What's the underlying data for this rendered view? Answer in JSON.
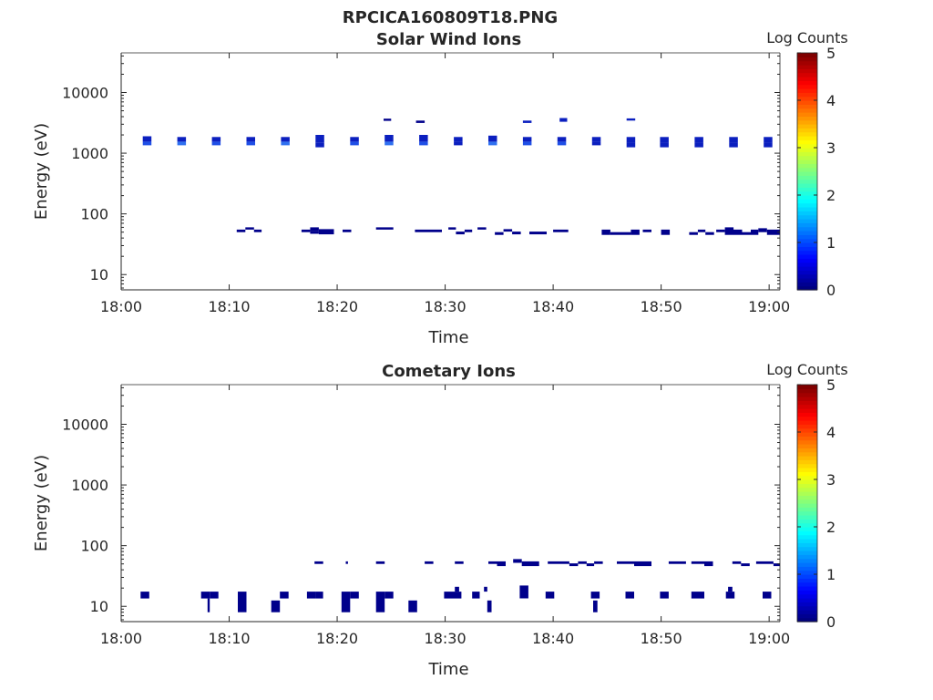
{
  "figure_title": "RPCICA160809T18.PNG",
  "colors": {
    "c0": "#00008b",
    "c1": "#0b1fbf",
    "c2": "#1f4fe6",
    "c3": "#2f70f0"
  },
  "chart_data": [
    {
      "type": "heatmap",
      "title": "Solar Wind Ions",
      "xlabel": "Time",
      "ylabel": "Energy (eV)",
      "x_ticks": [
        "18:00",
        "18:10",
        "18:20",
        "18:30",
        "18:40",
        "18:50",
        "19:00"
      ],
      "y_ticks": [
        "10",
        "100",
        "1000",
        "10000"
      ],
      "xlim_minutes": [
        0,
        61
      ],
      "y_scale": "log",
      "ylim": [
        5.6,
        45000
      ],
      "grid": false,
      "colorbar": {
        "label": "Log Counts",
        "ticks": [
          "0",
          "1",
          "2",
          "3",
          "4",
          "5"
        ],
        "range": [
          0,
          5
        ],
        "colormap": "jet"
      },
      "cells": [
        [
          2.0,
          2.8,
          1350,
          1550,
          2
        ],
        [
          2.0,
          2.8,
          1550,
          1900,
          1
        ],
        [
          5.2,
          6.0,
          1350,
          1550,
          3
        ],
        [
          5.2,
          6.0,
          1550,
          1850,
          1
        ],
        [
          8.4,
          9.2,
          1350,
          1550,
          2
        ],
        [
          8.4,
          9.2,
          1550,
          1850,
          1
        ],
        [
          11.6,
          12.4,
          1350,
          1550,
          2
        ],
        [
          11.6,
          12.4,
          1550,
          1850,
          1
        ],
        [
          14.8,
          15.6,
          1350,
          1550,
          3
        ],
        [
          14.8,
          15.6,
          1550,
          1850,
          1
        ],
        [
          18.0,
          18.8,
          1250,
          1500,
          1
        ],
        [
          18.0,
          18.8,
          1500,
          2000,
          1
        ],
        [
          21.2,
          22.0,
          1350,
          1550,
          2
        ],
        [
          21.2,
          22.0,
          1550,
          1850,
          1
        ],
        [
          24.4,
          25.2,
          1350,
          1550,
          3
        ],
        [
          24.4,
          25.2,
          1550,
          2000,
          1
        ],
        [
          27.6,
          28.4,
          1350,
          1550,
          2
        ],
        [
          27.6,
          28.4,
          1550,
          2000,
          1
        ],
        [
          30.8,
          31.6,
          1350,
          1550,
          1
        ],
        [
          30.8,
          31.6,
          1550,
          1850,
          1
        ],
        [
          34.0,
          34.8,
          1350,
          1550,
          3
        ],
        [
          34.0,
          34.8,
          1550,
          1950,
          1
        ],
        [
          37.2,
          38.0,
          1350,
          1550,
          2
        ],
        [
          37.2,
          38.0,
          1550,
          1850,
          1
        ],
        [
          40.4,
          41.2,
          1350,
          1550,
          2
        ],
        [
          40.4,
          41.2,
          1550,
          1850,
          1
        ],
        [
          43.6,
          44.4,
          1350,
          1550,
          1
        ],
        [
          43.6,
          44.4,
          1550,
          1850,
          1
        ],
        [
          46.8,
          47.6,
          1250,
          1500,
          1
        ],
        [
          46.8,
          47.6,
          1500,
          1850,
          1
        ],
        [
          49.9,
          50.7,
          1250,
          1500,
          1
        ],
        [
          49.9,
          50.7,
          1500,
          1850,
          1
        ],
        [
          53.1,
          53.9,
          1250,
          1500,
          1
        ],
        [
          53.1,
          53.9,
          1500,
          1850,
          1
        ],
        [
          56.3,
          57.1,
          1250,
          1500,
          1
        ],
        [
          56.3,
          57.1,
          1500,
          1850,
          1
        ],
        [
          59.5,
          60.3,
          1250,
          1500,
          1
        ],
        [
          59.5,
          60.3,
          1500,
          1850,
          1
        ],
        [
          24.3,
          25.0,
          3400,
          3700,
          0
        ],
        [
          27.3,
          28.1,
          3150,
          3450,
          0
        ],
        [
          37.2,
          38.0,
          3150,
          3450,
          1
        ],
        [
          40.6,
          41.3,
          3300,
          3800,
          1
        ],
        [
          46.8,
          47.6,
          3450,
          3750,
          1
        ],
        [
          10.7,
          11.5,
          50,
          55,
          0
        ],
        [
          11.5,
          12.3,
          55,
          60,
          0
        ],
        [
          12.3,
          13.0,
          50,
          55,
          0
        ],
        [
          16.7,
          17.5,
          50,
          55,
          0
        ],
        [
          17.5,
          18.3,
          52,
          60,
          0
        ],
        [
          17.5,
          18.3,
          47,
          52,
          0
        ],
        [
          18.3,
          19.7,
          46,
          56,
          0
        ],
        [
          20.5,
          21.3,
          50,
          55,
          0
        ],
        [
          23.6,
          25.2,
          55,
          60,
          0
        ],
        [
          27.2,
          29.7,
          50,
          55,
          0
        ],
        [
          30.3,
          31.0,
          55,
          60,
          0
        ],
        [
          31.0,
          31.8,
          46,
          51,
          0
        ],
        [
          31.8,
          32.5,
          50,
          55,
          0
        ],
        [
          33.0,
          33.8,
          55,
          60,
          0
        ],
        [
          34.6,
          35.4,
          45,
          50,
          0
        ],
        [
          35.4,
          36.2,
          51,
          56,
          0
        ],
        [
          36.2,
          37.0,
          46,
          51,
          0
        ],
        [
          37.8,
          38.6,
          46,
          51,
          0
        ],
        [
          38.6,
          39.4,
          46,
          51,
          0
        ],
        [
          40.0,
          41.4,
          50,
          55,
          0
        ],
        [
          44.5,
          45.3,
          45,
          55,
          0
        ],
        [
          45.3,
          47.2,
          45,
          50,
          0
        ],
        [
          47.2,
          48.0,
          45,
          55,
          0
        ],
        [
          48.3,
          49.1,
          50,
          55,
          0
        ],
        [
          50.0,
          50.8,
          45,
          55,
          0
        ],
        [
          52.6,
          53.4,
          45,
          50,
          0
        ],
        [
          53.4,
          54.1,
          50,
          55,
          0
        ],
        [
          54.1,
          54.9,
          45,
          50,
          0
        ],
        [
          55.1,
          55.9,
          50,
          55,
          0
        ],
        [
          55.9,
          56.7,
          45,
          60,
          0
        ],
        [
          56.7,
          57.5,
          45,
          55,
          0
        ],
        [
          57.5,
          58.3,
          45,
          50,
          0
        ],
        [
          58.3,
          59.0,
          45,
          55,
          0
        ],
        [
          59.0,
          59.8,
          50,
          58,
          0
        ],
        [
          59.8,
          61.0,
          45,
          55,
          0
        ]
      ]
    },
    {
      "type": "heatmap",
      "title": "Cometary Ions",
      "xlabel": "Time",
      "ylabel": "Energy (eV)",
      "x_ticks": [
        "18:00",
        "18:10",
        "18:20",
        "18:30",
        "18:40",
        "18:50",
        "19:00"
      ],
      "y_ticks": [
        "10",
        "100",
        "1000",
        "10000"
      ],
      "xlim_minutes": [
        0,
        61
      ],
      "y_scale": "log",
      "ylim": [
        5.6,
        45000
      ],
      "grid": false,
      "colorbar": {
        "label": "Log Counts",
        "ticks": [
          "0",
          "1",
          "2",
          "3",
          "4",
          "5"
        ],
        "range": [
          0,
          5
        ],
        "colormap": "jet"
      },
      "cells": [
        [
          1.8,
          2.6,
          13.5,
          17.5,
          0
        ],
        [
          7.4,
          8.2,
          13.5,
          17.5,
          0
        ],
        [
          8.2,
          9.0,
          13.5,
          17.5,
          0
        ],
        [
          8.0,
          8.2,
          8.0,
          13.5,
          0
        ],
        [
          10.8,
          11.6,
          8.0,
          17.5,
          0
        ],
        [
          13.9,
          14.7,
          8.0,
          12.5,
          0
        ],
        [
          14.7,
          15.5,
          13.5,
          17.5,
          0
        ],
        [
          17.2,
          18.0,
          13.5,
          17.5,
          0
        ],
        [
          18.0,
          18.7,
          13.5,
          17.5,
          0
        ],
        [
          17.9,
          18.7,
          50,
          55,
          0
        ],
        [
          20.4,
          21.2,
          8.0,
          17.5,
          0
        ],
        [
          21.2,
          22.0,
          13.5,
          17.5,
          0
        ],
        [
          20.8,
          21.0,
          50,
          55,
          0
        ],
        [
          23.6,
          24.4,
          8.0,
          17.5,
          0
        ],
        [
          24.4,
          25.2,
          13.5,
          17.5,
          0
        ],
        [
          23.6,
          24.4,
          50,
          55,
          0
        ],
        [
          26.6,
          27.4,
          8.0,
          12.5,
          0
        ],
        [
          28.1,
          28.9,
          50,
          55,
          0
        ],
        [
          29.9,
          31.5,
          13.5,
          17.5,
          0
        ],
        [
          30.9,
          31.3,
          17.5,
          21.0,
          0
        ],
        [
          30.9,
          31.7,
          50,
          55,
          0
        ],
        [
          32.5,
          33.2,
          13.5,
          17.5,
          0
        ],
        [
          33.6,
          33.9,
          17.5,
          21.0,
          0
        ],
        [
          33.9,
          34.3,
          8.0,
          12.5,
          0
        ],
        [
          34.0,
          34.8,
          50,
          55,
          0
        ],
        [
          34.8,
          35.6,
          46,
          55,
          0
        ],
        [
          36.3,
          37.1,
          52,
          60,
          0
        ],
        [
          36.9,
          37.7,
          13.5,
          22.0,
          0
        ],
        [
          37.1,
          38.7,
          46,
          55,
          0
        ],
        [
          39.3,
          40.1,
          13.5,
          17.5,
          0
        ],
        [
          39.5,
          41.5,
          50,
          55,
          0
        ],
        [
          41.5,
          42.3,
          46,
          51,
          0
        ],
        [
          42.3,
          43.1,
          50,
          55,
          0
        ],
        [
          43.1,
          43.8,
          46,
          51,
          0
        ],
        [
          43.8,
          44.6,
          50,
          55,
          0
        ],
        [
          43.5,
          44.3,
          13.5,
          17.5,
          0
        ],
        [
          43.7,
          44.1,
          8.0,
          12.5,
          0
        ],
        [
          45.9,
          47.5,
          50,
          55,
          0
        ],
        [
          46.7,
          47.5,
          13.5,
          17.5,
          0
        ],
        [
          47.5,
          49.1,
          46,
          55,
          0
        ],
        [
          49.9,
          50.7,
          13.5,
          17.5,
          0
        ],
        [
          50.7,
          52.3,
          50,
          55,
          0
        ],
        [
          52.8,
          54.0,
          13.5,
          17.5,
          0
        ],
        [
          52.8,
          54.0,
          50,
          55,
          0
        ],
        [
          54.0,
          54.8,
          46,
          55,
          0
        ],
        [
          56.0,
          56.8,
          13.5,
          17.5,
          0
        ],
        [
          56.2,
          56.6,
          17.5,
          21.0,
          0
        ],
        [
          56.6,
          57.4,
          50,
          55,
          0
        ],
        [
          57.4,
          58.2,
          46,
          51,
          0
        ],
        [
          59.4,
          60.2,
          13.5,
          17.5,
          0
        ],
        [
          58.8,
          60.4,
          50,
          55,
          0
        ],
        [
          60.4,
          61.0,
          46,
          51,
          0
        ]
      ]
    }
  ]
}
